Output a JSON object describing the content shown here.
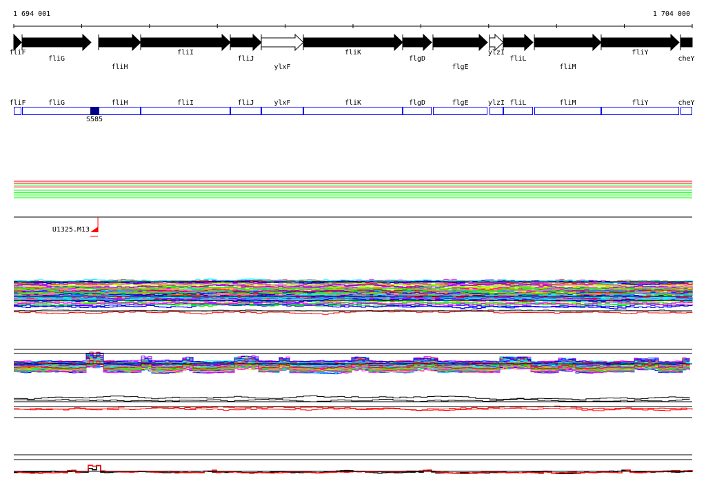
{
  "ruler": {
    "start_label": "1 694 001",
    "end_label": "1 704 000",
    "start": 1694001,
    "end": 1704000,
    "ticks": 11
  },
  "genes": [
    {
      "name": "fliF",
      "start": 1694001,
      "end": 1694113,
      "style": "filled",
      "shape": "head"
    },
    {
      "name": "fliG",
      "start": 1694123,
      "end": 1695139,
      "style": "filled",
      "shape": "arrow"
    },
    {
      "name": "fliH",
      "start": 1695251,
      "end": 1695871,
      "style": "filled",
      "shape": "arrow"
    },
    {
      "name": "fliI",
      "start": 1695871,
      "end": 1697192,
      "style": "filled",
      "shape": "arrow"
    },
    {
      "name": "fliJ",
      "start": 1697192,
      "end": 1697649,
      "style": "filled",
      "shape": "arrow"
    },
    {
      "name": "ylxF",
      "start": 1697649,
      "end": 1698269,
      "style": "open",
      "shape": "arrow"
    },
    {
      "name": "fliK",
      "start": 1698269,
      "end": 1699732,
      "style": "filled",
      "shape": "arrow"
    },
    {
      "name": "flgD",
      "start": 1699732,
      "end": 1700159,
      "style": "filled",
      "shape": "arrow"
    },
    {
      "name": "flgE",
      "start": 1700179,
      "end": 1700982,
      "style": "filled",
      "shape": "arrow"
    },
    {
      "name": "ylzI",
      "start": 1701012,
      "end": 1701215,
      "style": "open",
      "shape": "arrow"
    },
    {
      "name": "fliL",
      "start": 1701215,
      "end": 1701652,
      "style": "filled",
      "shape": "arrow"
    },
    {
      "name": "fliM",
      "start": 1701673,
      "end": 1702658,
      "style": "filled",
      "shape": "arrow"
    },
    {
      "name": "fliY",
      "start": 1702658,
      "end": 1703807,
      "style": "filled",
      "shape": "arrow"
    },
    {
      "name": "cheY",
      "start": 1703827,
      "end": 1704000,
      "style": "filled",
      "shape": "box"
    }
  ],
  "feature": {
    "label": "S585",
    "start": 1695129,
    "end": 1695251,
    "color": "#00008b"
  },
  "marker": {
    "label": "U1325.M13",
    "position": 1695241,
    "color": "#ff0000"
  },
  "colors": {
    "gene_box": "#0000ff",
    "palette": [
      "#ff00ff",
      "#0000ff",
      "#00ffff",
      "#00ff00",
      "#ff0000",
      "#808080",
      "#ffa500",
      "#ccff00",
      "#8000ff",
      "#00bfff",
      "#ff69b4",
      "#000000"
    ]
  }
}
